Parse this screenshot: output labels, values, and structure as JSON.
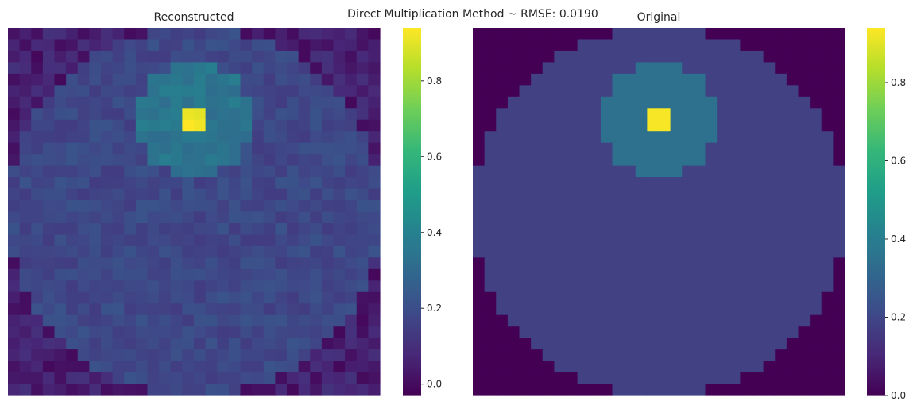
{
  "title": "Direct Multiplication Method ~ RMSE: 0.0190",
  "colors": {
    "colormap": "viridis",
    "viridis_stops": [
      "#440154",
      "#482878",
      "#3e4a89",
      "#31688e",
      "#26828e",
      "#1f9e89",
      "#35b779",
      "#6ece58",
      "#b5de2b",
      "#fde725"
    ]
  },
  "chart_data": [
    {
      "type": "heatmap",
      "title": "Reconstructed",
      "grid_size": [
        32,
        32
      ],
      "phantom": {
        "outer_ellipse": {
          "center": [
            0.5,
            0.5
          ],
          "radius": 0.5,
          "value": 0.18
        },
        "inner_circle": {
          "center": [
            0.5,
            0.25
          ],
          "radius": 0.155,
          "value": 0.35
        },
        "hot_spot": {
          "rows": [
            7,
            8
          ],
          "cols": [
            15,
            16
          ],
          "value": 0.93
        }
      },
      "outside_value": 0.05,
      "noise_amplitude": 0.04,
      "colorbar": {
        "vmin": -0.03,
        "vmax": 0.94,
        "ticks": [
          0.0,
          0.2,
          0.4,
          0.6,
          0.8
        ],
        "tick_labels": [
          "0.0",
          "0.2",
          "0.4",
          "0.6",
          "0.8"
        ]
      },
      "grid": false
    },
    {
      "type": "heatmap",
      "title": "Original",
      "grid_size": [
        32,
        32
      ],
      "phantom": {
        "outer_ellipse": {
          "center": [
            0.5,
            0.5
          ],
          "radius": 0.5,
          "value": 0.18
        },
        "inner_circle": {
          "center": [
            0.5,
            0.25
          ],
          "radius": 0.155,
          "value": 0.35
        },
        "hot_spot": {
          "rows": [
            7,
            8
          ],
          "cols": [
            15,
            16
          ],
          "value": 0.93
        }
      },
      "outside_value": 0.0,
      "noise_amplitude": 0.0,
      "colorbar": {
        "vmin": 0.0,
        "vmax": 0.94,
        "ticks": [
          0.0,
          0.2,
          0.4,
          0.6,
          0.8
        ],
        "tick_labels": [
          "0.0",
          "0.2",
          "0.4",
          "0.6",
          "0.8"
        ]
      },
      "grid": false
    }
  ]
}
